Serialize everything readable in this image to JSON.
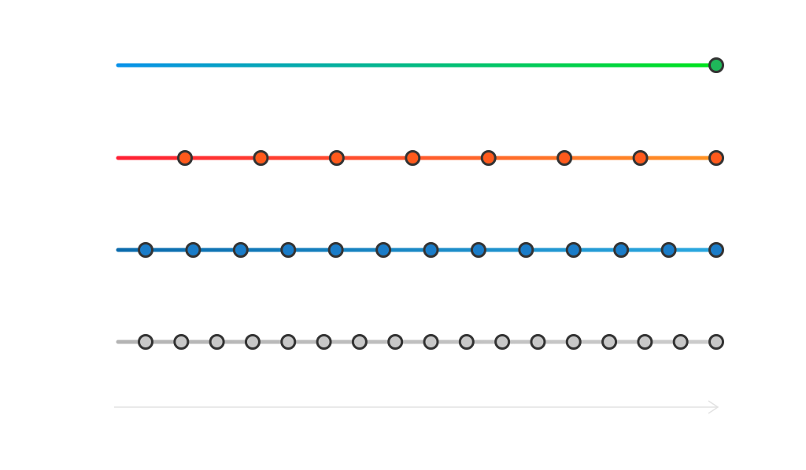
{
  "rows": [
    {
      "colors": [
        "#0a92ea",
        "#00e41c"
      ],
      "dots": 1,
      "dot_color": "#1fb85a"
    },
    {
      "colors": [
        "#ff2034",
        "#ff9424"
      ],
      "dots": 8,
      "dot_color": "#ff5a1c"
    },
    {
      "colors": [
        "#0a6aac",
        "#2aa8e0"
      ],
      "dots": 13,
      "dot_color": "#1a7cc8"
    },
    {
      "colors": [
        "#b4b4b4",
        "#cccccc"
      ],
      "dots": 17,
      "dot_color": "#c8c8c8"
    }
  ],
  "arrow_color": "#e2e2e2"
}
